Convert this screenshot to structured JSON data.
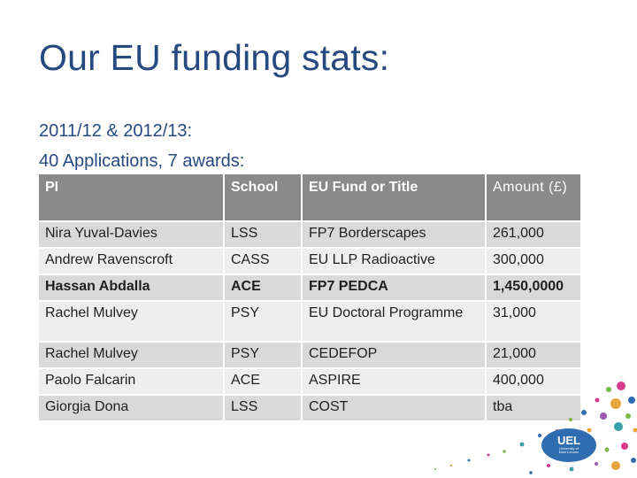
{
  "slide": {
    "title": "Our EU funding stats:",
    "line1": "2011/12 & 2012/13:",
    "line2": "40 Applications, 7 awards:"
  },
  "table": {
    "headers": [
      "PI",
      "School",
      "EU Fund or Title",
      "Amount (£)"
    ],
    "rows": [
      [
        "Nira Yuval-Davies",
        "LSS",
        "FP7 Borderscapes",
        "261,000"
      ],
      [
        "Andrew Ravenscroft",
        "CASS",
        "EU LLP Radioactive",
        "300,000"
      ],
      [
        "Hassan Abdalla",
        "ACE",
        "FP7 PEDCA",
        "1,450,0000"
      ],
      [
        "Rachel Mulvey",
        "PSY",
        "EU Doctoral Programme",
        "31,000"
      ],
      [
        "Rachel Mulvey",
        "PSY",
        "CEDEFOP",
        "21,000"
      ],
      [
        "Paolo Falcarin",
        "ACE",
        "ASPIRE",
        "400,000"
      ],
      [
        "Giorgia Dona",
        "LSS",
        "COST",
        "tba"
      ]
    ]
  },
  "logo": {
    "text": "UEL",
    "line1": "University of",
    "line2": "East London"
  }
}
